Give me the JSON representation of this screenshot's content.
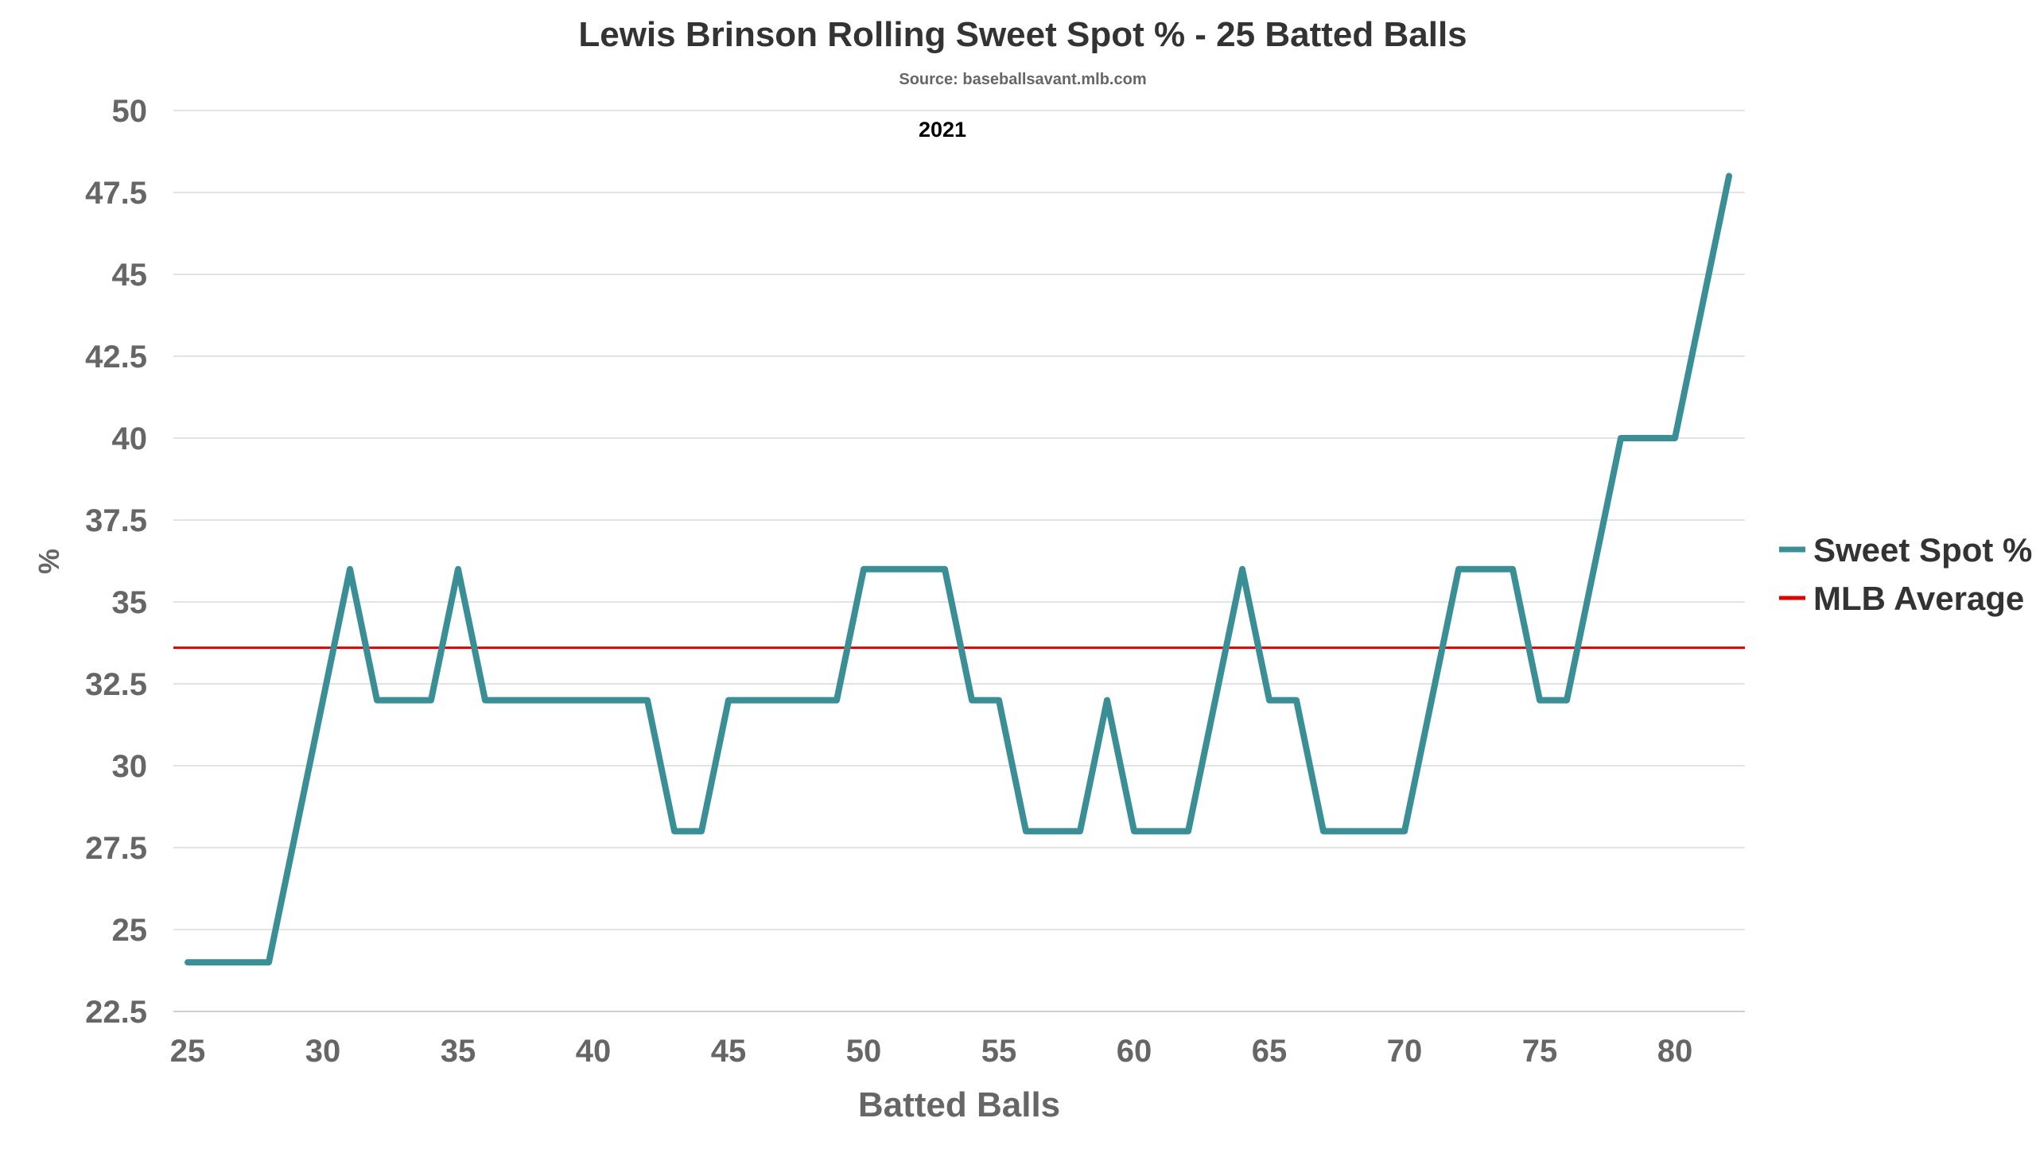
{
  "chart_data": {
    "type": "line",
    "title": "Lewis Brinson Rolling Sweet Spot % - 25 Batted Balls",
    "subtitle": "Source: baseballsavant.mlb.com",
    "annotation": "2021",
    "xlabel": "Batted Balls",
    "ylabel": "%",
    "xlim": [
      24.5,
      83
    ],
    "ylim": [
      22.5,
      50
    ],
    "xticks": [
      "25",
      "30",
      "35",
      "40",
      "45",
      "50",
      "55",
      "60",
      "65",
      "70",
      "75",
      "80"
    ],
    "yticks": [
      "22.5",
      "25",
      "27.5",
      "30",
      "32.5",
      "35",
      "37.5",
      "40",
      "42.5",
      "45",
      "47.5",
      "50"
    ],
    "grid": true,
    "legend_position": "right",
    "series": [
      {
        "name": "Sweet Spot %",
        "color": "#3a8f97",
        "x": [
          25,
          26,
          27,
          28,
          29,
          30,
          31,
          32,
          33,
          34,
          35,
          36,
          37,
          38,
          39,
          40,
          41,
          42,
          43,
          44,
          45,
          46,
          47,
          48,
          49,
          50,
          51,
          52,
          53,
          54,
          55,
          56,
          57,
          58,
          59,
          60,
          61,
          62,
          63,
          64,
          65,
          66,
          67,
          68,
          69,
          70,
          71,
          72,
          73,
          74,
          75,
          76,
          77,
          78,
          79,
          80,
          81,
          82
        ],
        "y": [
          24,
          24,
          24,
          24,
          28,
          32,
          36,
          32,
          32,
          32,
          36,
          32,
          32,
          32,
          32,
          32,
          32,
          32,
          28,
          28,
          32,
          32,
          32,
          32,
          32,
          36,
          36,
          36,
          36,
          32,
          32,
          28,
          28,
          28,
          32,
          28,
          28,
          28,
          32,
          36,
          32,
          32,
          28,
          28,
          28,
          28,
          32,
          36,
          36,
          36,
          32,
          32,
          36,
          40,
          40,
          40,
          44,
          48
        ]
      },
      {
        "name": "MLB Average",
        "color": "#e00000",
        "constant": 33.6
      }
    ]
  }
}
